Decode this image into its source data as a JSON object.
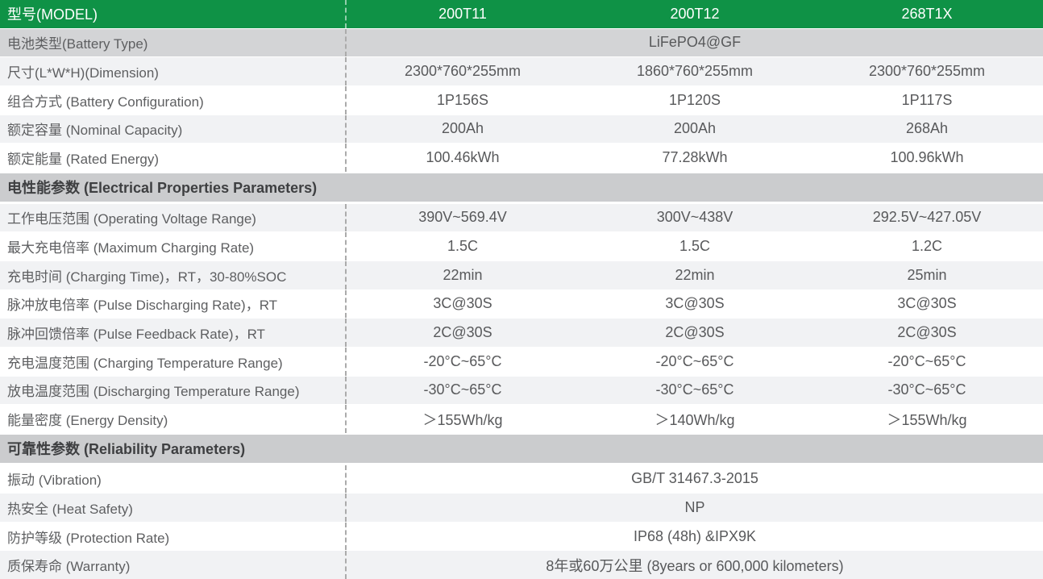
{
  "colors": {
    "header_green": "#0f9246",
    "battery_type_row_gray": "#d3d4d6",
    "alt_row_gray": "#f1f2f4",
    "section_row_gray": "#cbccce",
    "dashed_divider_gray": "#ababab",
    "header_text": "#ffffff",
    "label_text": "#5e5f61",
    "value_text": "#58595b",
    "section_text": "#3e3f41"
  },
  "header": {
    "model_label": "型号(MODEL)",
    "models": [
      "200T11",
      "200T12",
      "268T1X"
    ]
  },
  "rows": [
    {
      "label": "电池类型(Battery Type)",
      "merged_value": "LiFePO4@GF"
    },
    {
      "label": "尺寸(L*W*H)(Dimension)",
      "values": [
        "2300*760*255mm",
        "1860*760*255mm",
        "2300*760*255mm"
      ]
    },
    {
      "label": "组合方式 (Battery Configuration)",
      "values": [
        "1P156S",
        "1P120S",
        "1P117S"
      ]
    },
    {
      "label": "额定容量 (Nominal Capacity)",
      "values": [
        "200Ah",
        "200Ah",
        "268Ah"
      ]
    },
    {
      "label": "额定能量 (Rated Energy)",
      "values": [
        "100.46kWh",
        "77.28kWh",
        "100.96kWh"
      ]
    },
    {
      "section": "电性能参数 (Electrical Properties Parameters)"
    },
    {
      "label": "工作电压范围 (Operating Voltage Range)",
      "values": [
        "390V~569.4V",
        "300V~438V",
        "292.5V~427.05V"
      ]
    },
    {
      "label": "最大充电倍率 (Maximum Charging Rate)",
      "values": [
        "1.5C",
        "1.5C",
        "1.2C"
      ]
    },
    {
      "label": "充电时间 (Charging Time)，RT，30-80%SOC",
      "values": [
        "22min",
        "22min",
        "25min"
      ]
    },
    {
      "label": "脉冲放电倍率 (Pulse Discharging Rate)，RT",
      "values": [
        "3C@30S",
        "3C@30S",
        "3C@30S"
      ]
    },
    {
      "label": "脉冲回馈倍率 (Pulse Feedback Rate)，RT",
      "values": [
        "2C@30S",
        "2C@30S",
        "2C@30S"
      ]
    },
    {
      "label": "充电温度范围 (Charging Temperature Range)",
      "values": [
        "-20°C~65°C",
        "-20°C~65°C",
        "-20°C~65°C"
      ]
    },
    {
      "label": "放电温度范围 (Discharging Temperature Range)",
      "values": [
        "-30°C~65°C",
        "-30°C~65°C",
        "-30°C~65°C"
      ]
    },
    {
      "label": "能量密度 (Energy Density)",
      "values": [
        "＞155Wh/kg",
        "＞140Wh/kg",
        "＞155Wh/kg"
      ]
    },
    {
      "section": "可靠性参数 (Reliability Parameters)"
    },
    {
      "label": "振动 (Vibration)",
      "merged_value": "GB/T 31467.3-2015"
    },
    {
      "label": "热安全 (Heat Safety)",
      "merged_value": "NP"
    },
    {
      "label": "防护等级 (Protection Rate)",
      "merged_value": "IP68 (48h) &IPX9K"
    },
    {
      "label": "质保寿命 (Warranty)",
      "merged_value": "8年或60万公里 (8years or 600,000 kilometers)"
    }
  ]
}
